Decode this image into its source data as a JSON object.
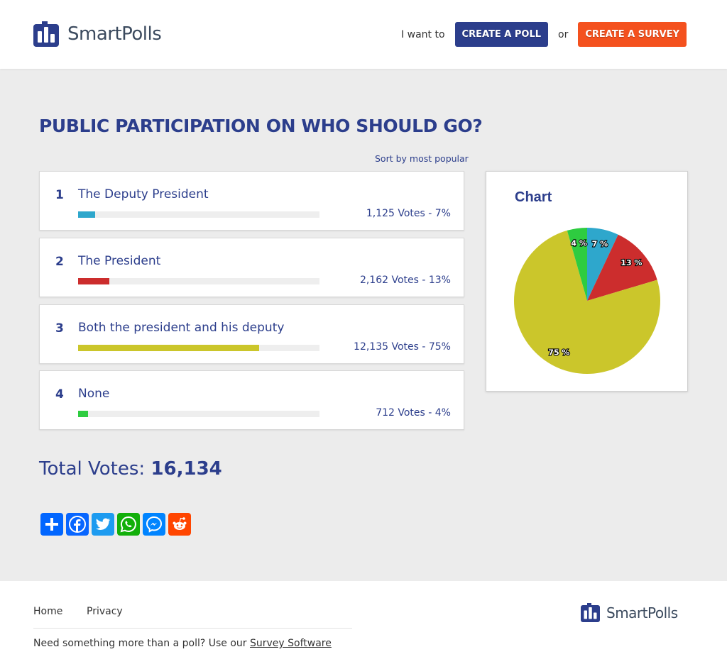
{
  "brand": {
    "name": "SmartPolls",
    "color": "#2c3e8c"
  },
  "header": {
    "lead_text": "I want to",
    "or_text": "or",
    "create_poll": "CREATE A POLL",
    "create_survey": "CREATE A SURVEY"
  },
  "poll": {
    "title": "PUBLIC PARTICIPATION ON WHO SHOULD GO?",
    "sort_label": "Sort by most popular",
    "options": [
      {
        "rank": "1",
        "label": "The Deputy President",
        "votes_text": "1,125 Votes - 7%",
        "percent": 7,
        "color": "#2ea7cc"
      },
      {
        "rank": "2",
        "label": "The President",
        "votes_text": "2,162 Votes - 13%",
        "percent": 13,
        "color": "#cc2d2d"
      },
      {
        "rank": "3",
        "label": "Both the president and his deputy",
        "votes_text": "12,135 Votes - 75%",
        "percent": 75,
        "color": "#cbc62b"
      },
      {
        "rank": "4",
        "label": "None",
        "votes_text": "712 Votes - 4%",
        "percent": 4,
        "color": "#2ecc40"
      }
    ],
    "total_label": "Total Votes:",
    "total_value": "16,134"
  },
  "chart": {
    "title": "Chart"
  },
  "chart_data": {
    "type": "pie",
    "title": "Chart",
    "categories": [
      "The Deputy President",
      "The President",
      "Both the president and his deputy",
      "None"
    ],
    "values": [
      1125,
      2162,
      12135,
      712
    ],
    "labels": [
      "7 %",
      "13 %",
      "75 %",
      "4 %"
    ],
    "colors": [
      "#2ea7cc",
      "#cc2d2d",
      "#cbc62b",
      "#2ecc40"
    ]
  },
  "share": {
    "buttons": [
      {
        "name": "share-icon",
        "color": "#0166ff"
      },
      {
        "name": "facebook-icon",
        "color": "#0866ff"
      },
      {
        "name": "twitter-icon",
        "color": "#1d9bf0"
      },
      {
        "name": "whatsapp-icon",
        "color": "#12af0a"
      },
      {
        "name": "messenger-icon",
        "color": "#0084ff"
      },
      {
        "name": "reddit-icon",
        "color": "#ff4500"
      }
    ]
  },
  "footer": {
    "home": "Home",
    "privacy": "Privacy",
    "note": "Need something more than a poll? Use our",
    "note_link": "Survey Software"
  }
}
